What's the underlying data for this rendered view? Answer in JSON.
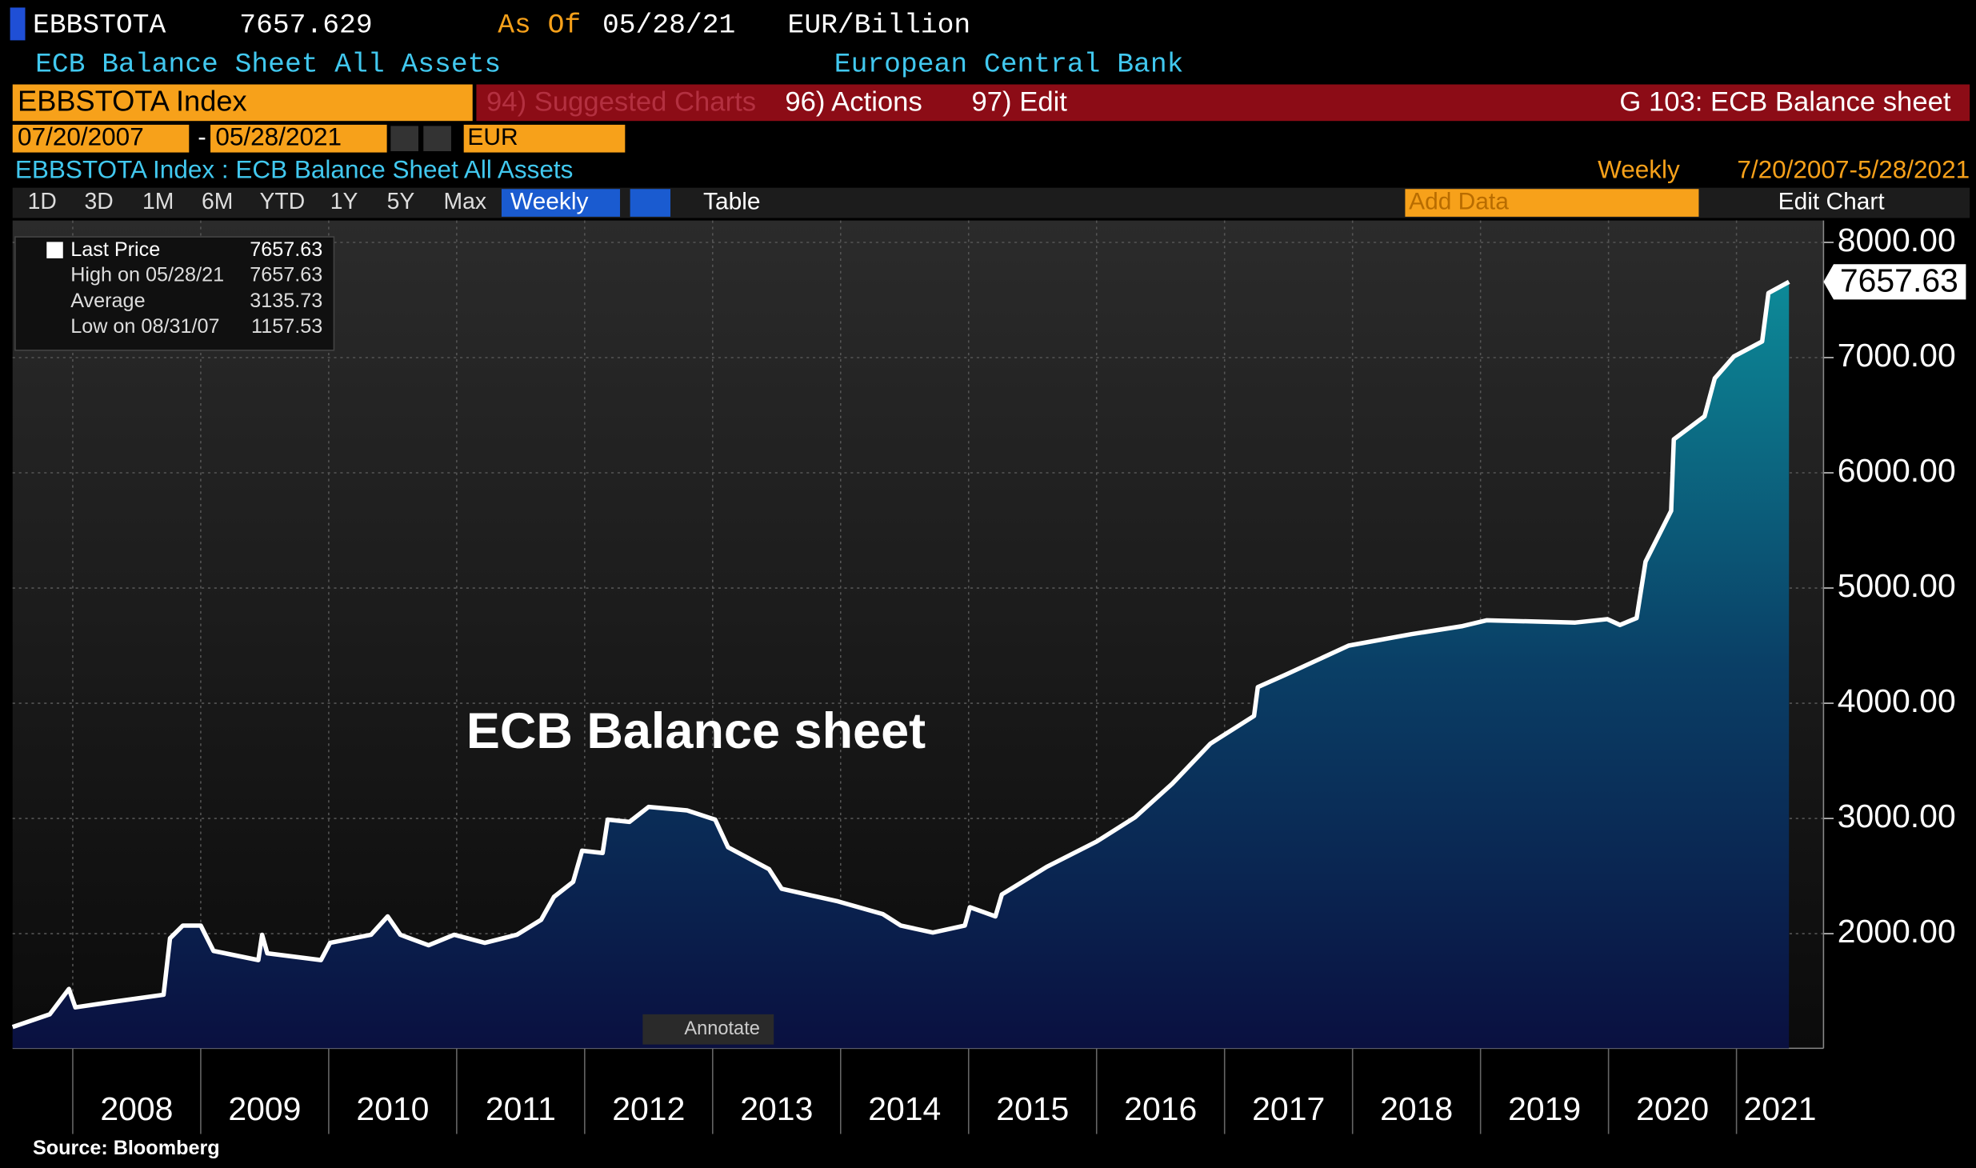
{
  "header": {
    "ticker": "EBBSTOTA",
    "price": "7657.629",
    "as_of_label": "As Of",
    "as_of_date": "05/28/21",
    "units": "EUR/Billion",
    "name": "ECB Balance Sheet All Assets",
    "source_org": "European Central Bank"
  },
  "toolbar": {
    "security": "EBBSTOTA Index",
    "suggested": "94) Suggested Charts",
    "actions": "96) Actions",
    "edit": "97) Edit",
    "chart_name": "G 103: ECB Balance sheet"
  },
  "dates": {
    "start": "07/20/2007",
    "end": "05/28/2021",
    "currency": "EUR"
  },
  "info": {
    "description": "EBBSTOTA Index : ECB Balance Sheet All Assets",
    "frequency": "Weekly",
    "range": "7/20/2007-5/28/2021"
  },
  "buttons": {
    "periods": [
      "1D",
      "3D",
      "1M",
      "6M",
      "YTD",
      "1Y",
      "5Y",
      "Max"
    ],
    "frequency": "Weekly",
    "table": "Table",
    "add_data": "Add Data",
    "edit_chart": "Edit Chart",
    "annotate": "Annotate"
  },
  "legend_box": {
    "rows": [
      {
        "label": "High on 05/28/21",
        "value": "7657.63"
      },
      {
        "label": "Average",
        "value": "3135.73"
      },
      {
        "label": "Low on 08/31/07",
        "value": "1157.53"
      }
    ],
    "last_value": "7657.63"
  },
  "source": "Source: Bloomberg",
  "chart_data": {
    "type": "line",
    "annotation": "ECB Balance sheet",
    "current_label": "7657.63",
    "xlim": [
      2007.53,
      2021.68
    ],
    "xticks": [
      2008,
      2009,
      2010,
      2011,
      2012,
      2013,
      2014,
      2015,
      2016,
      2017,
      2018,
      2019,
      2020,
      2021
    ],
    "ylim": [
      1005,
      8190
    ],
    "yticks": [
      {
        "value": 2000,
        "label": "2000.00"
      },
      {
        "value": 3000,
        "label": "3000.00"
      },
      {
        "value": 4000,
        "label": "4000.00"
      },
      {
        "value": 5000,
        "label": "5000.00"
      },
      {
        "value": 6000,
        "label": "6000.00"
      },
      {
        "value": 7000,
        "label": "7000.00"
      },
      {
        "value": 8000,
        "label": "8000.00"
      }
    ],
    "grid": true,
    "series": [
      {
        "name": "Last Price",
        "color": "#ffffff",
        "x": [
          2007.53,
          2007.82,
          2007.97,
          2008.02,
          2008.32,
          2008.71,
          2008.76,
          2008.86,
          2009.0,
          2009.1,
          2009.45,
          2009.48,
          2009.52,
          2009.94,
          2010.01,
          2010.33,
          2010.46,
          2010.56,
          2010.78,
          2010.98,
          2011.22,
          2011.47,
          2011.66,
          2011.76,
          2011.91,
          2011.98,
          2012.14,
          2012.18,
          2012.35,
          2012.5,
          2012.8,
          2013.02,
          2013.12,
          2013.44,
          2013.54,
          2013.98,
          2014.33,
          2014.47,
          2014.72,
          2014.97,
          2015.01,
          2015.21,
          2015.26,
          2015.61,
          2016.0,
          2016.3,
          2016.59,
          2016.89,
          2017.23,
          2017.26,
          2017.48,
          2017.97,
          2018.46,
          2018.86,
          2019.05,
          2019.74,
          2019.99,
          2020.09,
          2020.22,
          2020.29,
          2020.49,
          2020.51,
          2020.75,
          2020.83,
          2020.98,
          2021.2,
          2021.25,
          2021.41
        ],
        "values": [
          1190,
          1300,
          1520,
          1360,
          1410,
          1470,
          1960,
          2070,
          2070,
          1850,
          1770,
          1990,
          1830,
          1770,
          1920,
          1990,
          2150,
          1990,
          1900,
          1990,
          1920,
          1990,
          2120,
          2320,
          2450,
          2720,
          2700,
          2990,
          2970,
          3100,
          3070,
          2990,
          2750,
          2560,
          2390,
          2280,
          2170,
          2070,
          2010,
          2070,
          2230,
          2150,
          2340,
          2580,
          2800,
          3010,
          3300,
          3650,
          3890,
          4140,
          4250,
          4500,
          4600,
          4670,
          4720,
          4700,
          4730,
          4680,
          4740,
          5230,
          5670,
          6290,
          6490,
          6820,
          7010,
          7140,
          7560,
          7657.63
        ]
      }
    ]
  }
}
